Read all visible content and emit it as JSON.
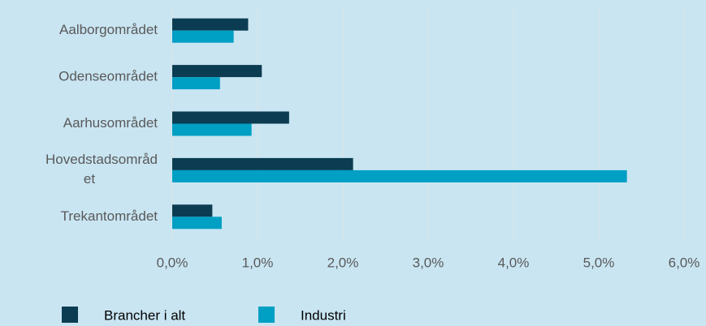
{
  "chart_data": {
    "type": "hbar",
    "categories": [
      "Aalborgområdet",
      "Odenseområdet",
      "Aarhusområdet",
      "Hovedstadsområdet",
      "Trekantområdet"
    ],
    "series": [
      {
        "name": "Brancher i alt",
        "color": "#0b3c52",
        "values": [
          0.89,
          1.05,
          1.37,
          2.12,
          0.47
        ]
      },
      {
        "name": "Industri",
        "color": "#009fc4",
        "values": [
          0.72,
          0.56,
          0.93,
          5.33,
          0.58
        ]
      }
    ],
    "xlim": [
      0,
      6
    ],
    "xticks": [
      {
        "value": 0,
        "label": "0,0%"
      },
      {
        "value": 1,
        "label": "1,0%"
      },
      {
        "value": 2,
        "label": "2,0%"
      },
      {
        "value": 3,
        "label": "3,0%"
      },
      {
        "value": 4,
        "label": "4,0%"
      },
      {
        "value": 5,
        "label": "5,0%"
      },
      {
        "value": 6,
        "label": "6,0%"
      }
    ],
    "grid": true,
    "legend": "bottom"
  }
}
